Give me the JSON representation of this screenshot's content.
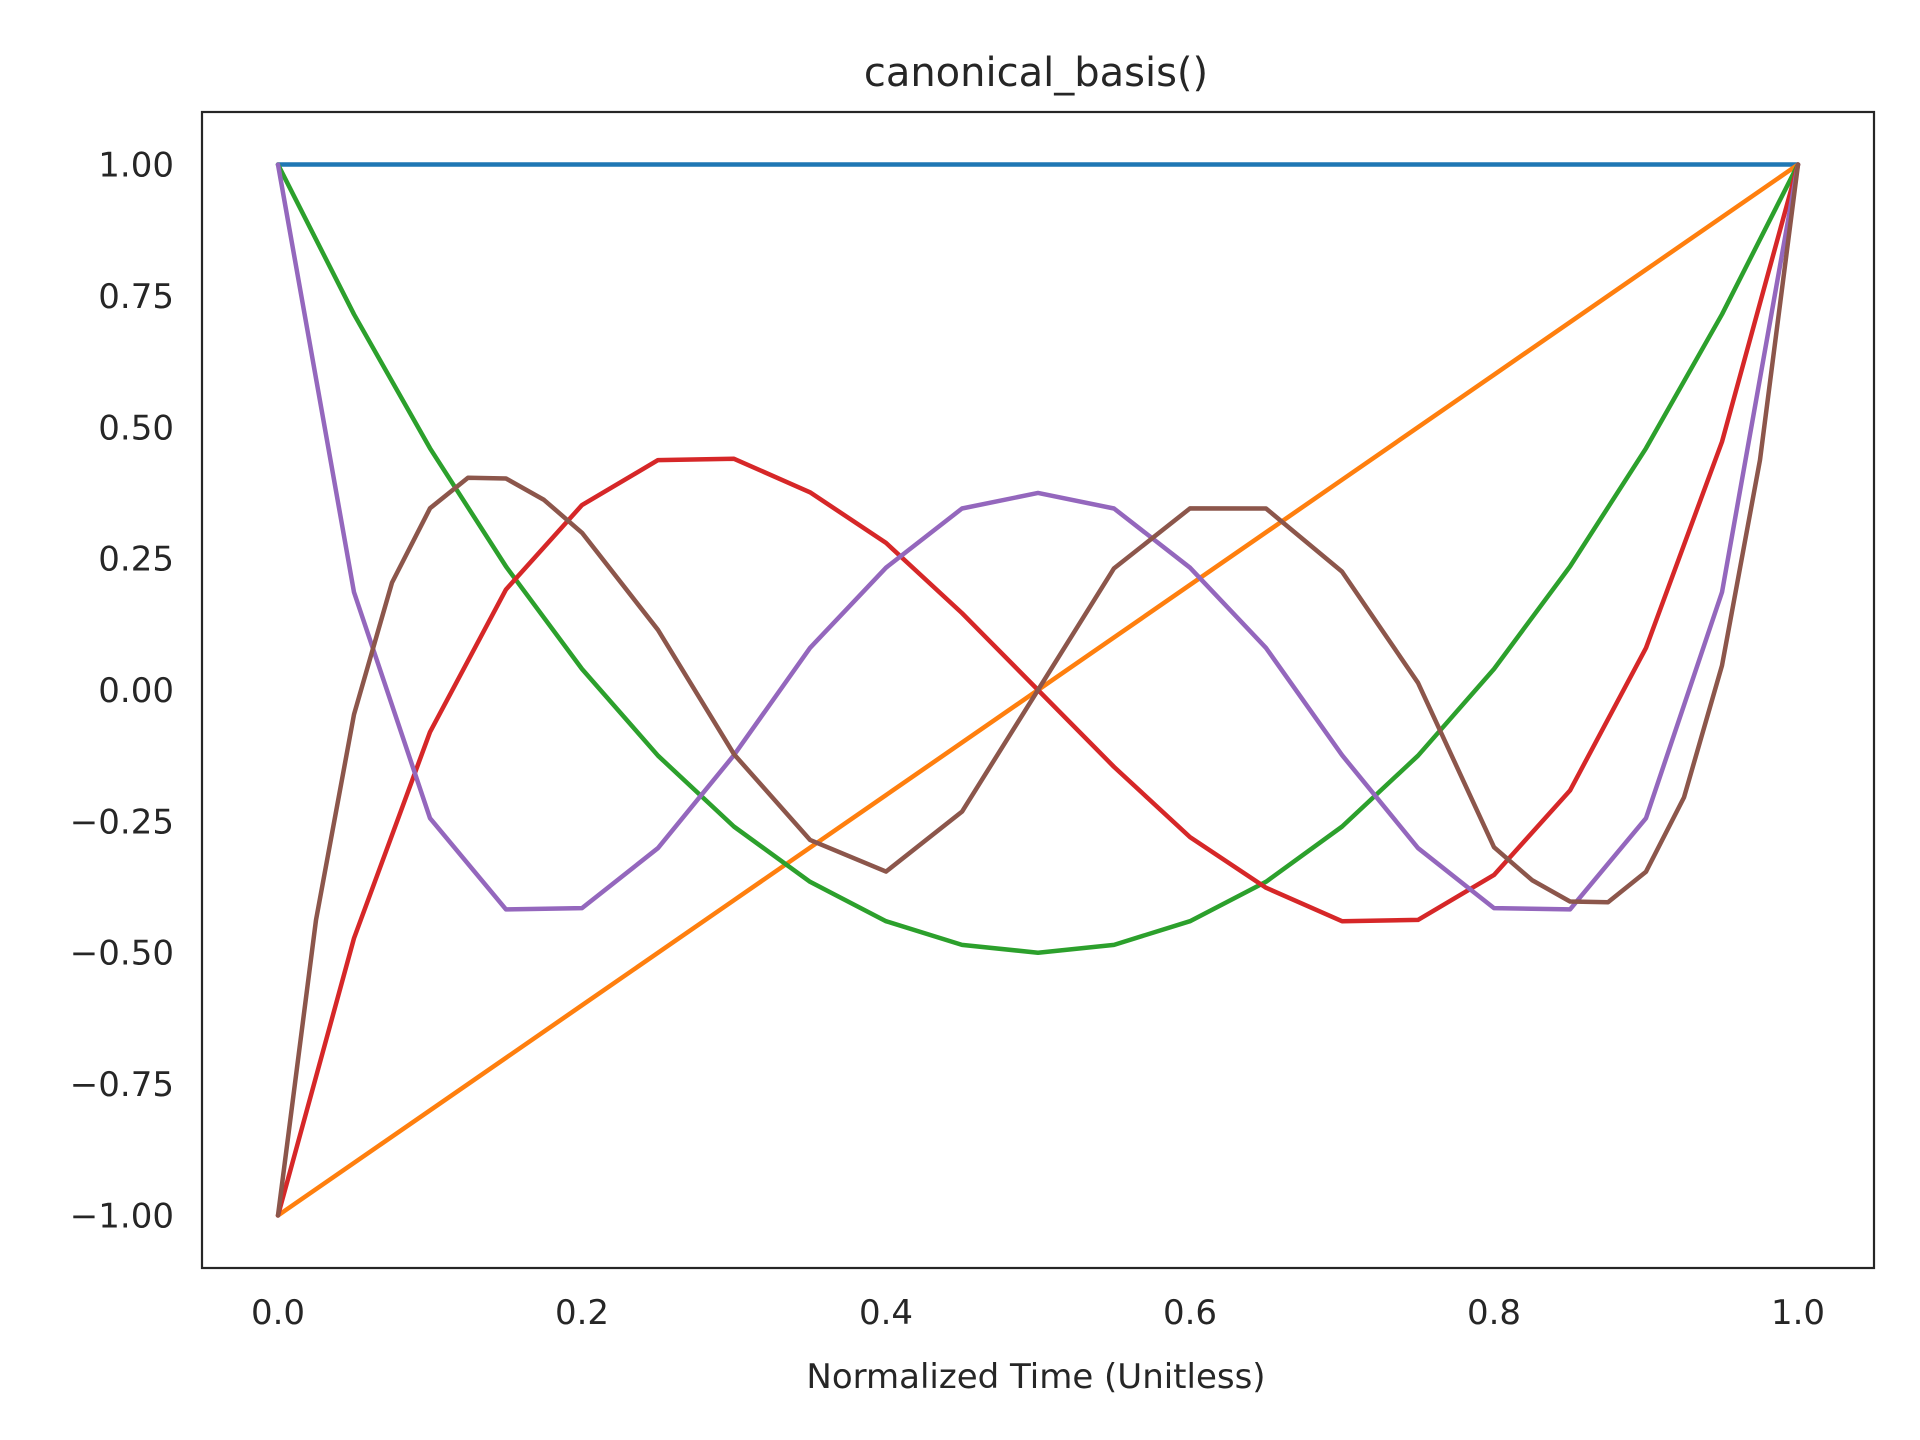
{
  "chart_data": {
    "type": "line",
    "title": "canonical_basis()",
    "xlabel": "Normalized Time (Unitless)",
    "ylabel": "",
    "xlim": [
      -0.05,
      1.05
    ],
    "ylim": [
      -1.1,
      1.1
    ],
    "xticks": [
      0.0,
      0.2,
      0.4,
      0.6,
      0.8,
      1.0
    ],
    "xtick_labels": [
      "0.0",
      "0.2",
      "0.4",
      "0.6",
      "0.8",
      "1.0"
    ],
    "yticks": [
      1.0,
      0.75,
      0.5,
      0.25,
      0.0,
      -0.25,
      -0.5,
      -0.75,
      -1.0
    ],
    "ytick_labels": [
      "1.00",
      "0.75",
      "0.50",
      "0.25",
      "0.00",
      "−0.25",
      "−0.50",
      "−0.75",
      "−1.00"
    ],
    "grid": false,
    "legend": "none",
    "series": [
      {
        "color": "#1f77b4",
        "x": [
          0.0,
          0.1,
          0.2,
          0.3,
          0.4,
          0.5,
          0.6,
          0.7,
          0.8,
          0.9,
          1.0
        ],
        "y": [
          1.0,
          1.0,
          1.0,
          1.0,
          1.0,
          1.0,
          1.0,
          1.0,
          1.0,
          1.0,
          1.0
        ]
      },
      {
        "color": "#ff7f0e",
        "x": [
          0.0,
          0.1,
          0.2,
          0.3,
          0.4,
          0.5,
          0.6,
          0.7,
          0.8,
          0.9,
          1.0
        ],
        "y": [
          -1.0,
          -0.8,
          -0.6,
          -0.4,
          -0.2,
          0.0,
          0.2,
          0.4,
          0.6,
          0.8,
          1.0
        ]
      },
      {
        "color": "#2ca02c",
        "x": [
          0.0,
          0.05,
          0.1,
          0.15,
          0.2,
          0.25,
          0.3,
          0.35,
          0.4,
          0.45,
          0.5,
          0.55,
          0.6,
          0.65,
          0.7,
          0.75,
          0.8,
          0.85,
          0.9,
          0.95,
          1.0
        ],
        "y": [
          1.0,
          0.715,
          0.46,
          0.235,
          0.04,
          -0.125,
          -0.26,
          -0.365,
          -0.44,
          -0.485,
          -0.5,
          -0.485,
          -0.44,
          -0.365,
          -0.26,
          -0.125,
          0.04,
          0.235,
          0.46,
          0.715,
          1.0
        ]
      },
      {
        "color": "#d62728",
        "x": [
          0.0,
          0.05,
          0.1,
          0.15,
          0.2,
          0.25,
          0.3,
          0.35,
          0.4,
          0.45,
          0.5,
          0.55,
          0.6,
          0.65,
          0.7,
          0.75,
          0.8,
          0.85,
          0.9,
          0.95,
          1.0
        ],
        "y": [
          -1.0,
          -0.4725,
          -0.08,
          0.1913,
          0.352,
          0.4375,
          0.44,
          0.3763,
          0.28,
          0.1463,
          0.0,
          -0.1463,
          -0.28,
          -0.3763,
          -0.44,
          -0.4375,
          -0.352,
          -0.1913,
          0.08,
          0.4725,
          1.0
        ]
      },
      {
        "color": "#9467bd",
        "x": [
          0.0,
          0.05,
          0.1,
          0.15,
          0.2,
          0.25,
          0.3,
          0.35,
          0.4,
          0.45,
          0.5,
          0.55,
          0.6,
          0.65,
          0.7,
          0.75,
          0.8,
          0.85,
          0.9,
          0.95,
          1.0
        ],
        "y": [
          1.0,
          0.1861,
          -0.2439,
          -0.4176,
          -0.4152,
          -0.3008,
          -0.1239,
          0.0801,
          0.2328,
          0.3454,
          0.375,
          0.3454,
          0.2328,
          0.0801,
          -0.1239,
          -0.3008,
          -0.4152,
          -0.4176,
          -0.2439,
          0.1861,
          1.0
        ]
      },
      {
        "color": "#8c564b",
        "x": [
          0.0,
          0.025,
          0.05,
          0.075,
          0.1,
          0.125,
          0.15,
          0.175,
          0.2,
          0.25,
          0.3,
          0.35,
          0.4,
          0.45,
          0.5,
          0.55,
          0.6,
          0.65,
          0.7,
          0.75,
          0.8,
          0.825,
          0.85,
          0.875,
          0.9,
          0.925,
          0.95,
          0.975,
          1.0
        ],
        "y": [
          -1.0,
          -0.4378,
          -0.0466,
          0.2044,
          0.3458,
          0.404,
          0.4025,
          0.3618,
          0.2992,
          0.1143,
          -0.1222,
          -0.2853,
          -0.3456,
          -0.2315,
          0.0,
          0.2315,
          0.3456,
          0.3455,
          0.2253,
          0.0137,
          -0.2992,
          -0.3618,
          -0.4025,
          -0.404,
          -0.3458,
          -0.2044,
          0.0466,
          0.4378,
          1.0
        ]
      }
    ]
  }
}
